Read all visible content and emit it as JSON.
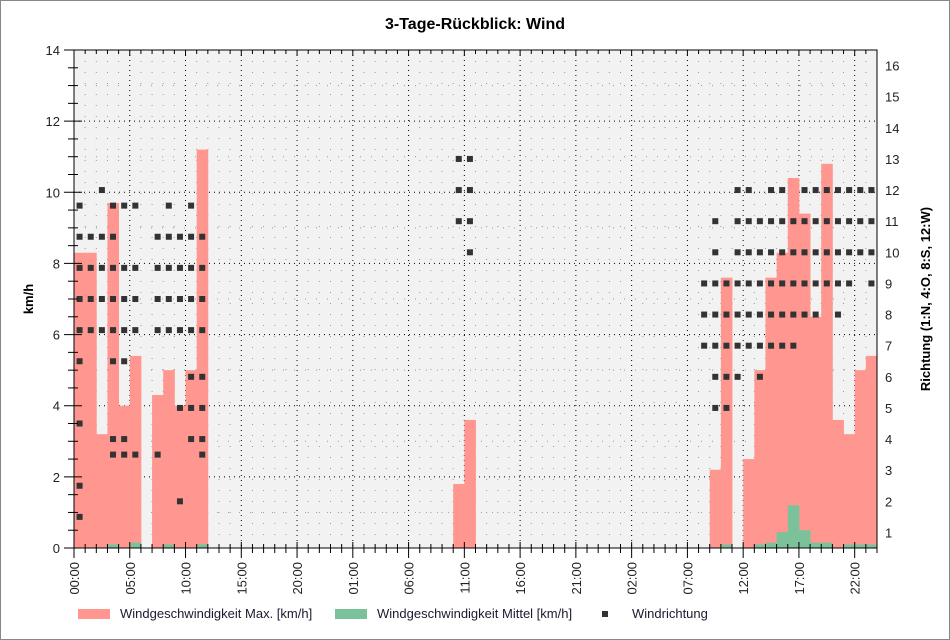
{
  "window": {
    "title": "3-Tage-Rückblick: Wind"
  },
  "chart_data": {
    "type": "bar",
    "title": "3-Tage-Rückblick: Wind",
    "xlabel": "",
    "ylabel": "km/h",
    "ylabel_right": "Richtung (1:N, 4:O, 8:S, 12:W)",
    "ylim": [
      0,
      14
    ],
    "ylim_right": [
      0.5,
      16.5
    ],
    "yticks": [
      0,
      2,
      4,
      6,
      8,
      10,
      12,
      14
    ],
    "yticks_right": [
      1,
      2,
      3,
      4,
      5,
      6,
      7,
      8,
      9,
      10,
      11,
      12,
      13,
      14,
      15,
      16
    ],
    "x_tick_labels": [
      "00:00",
      "05:00",
      "10:00",
      "15:00",
      "20:00",
      "01:00",
      "06:00",
      "11:00",
      "16:00",
      "21:00",
      "02:00",
      "07:00",
      "12:00",
      "17:00",
      "22:00"
    ],
    "grid": true,
    "legend_position": "bottom",
    "colors": {
      "max": "#ff9690",
      "mean": "#7bc29a",
      "direction": "#333333",
      "plot_bg": "#f2f2f2"
    },
    "hours": 72,
    "series": [
      {
        "name": "Windgeschwindigkeit Max. [km/h]",
        "type": "bar",
        "values": [
          8.3,
          8.3,
          3.2,
          9.7,
          4.0,
          5.4,
          0,
          4.3,
          5.0,
          4.0,
          5.0,
          11.2,
          0,
          0,
          0,
          0,
          0,
          0,
          0,
          0,
          0,
          0,
          0,
          0,
          0,
          0,
          0,
          0,
          0,
          0,
          0,
          0,
          0,
          0,
          1.8,
          3.6,
          0,
          0,
          0,
          0,
          0,
          0,
          0,
          0,
          0,
          0,
          0,
          0,
          0,
          0,
          0,
          0,
          0,
          0,
          0,
          0,
          0,
          2.2,
          7.6,
          0,
          2.5,
          5.0,
          7.6,
          8.3,
          10.4,
          9.4,
          6.5,
          10.8,
          3.6,
          3.2,
          5.0,
          5.4
        ]
      },
      {
        "name": "Windgeschwindigkeit Mittel [km/h]",
        "type": "bar",
        "values": [
          0,
          0,
          0,
          0.1,
          0,
          0.15,
          0,
          0,
          0.1,
          0,
          0,
          0.1,
          0,
          0,
          0,
          0,
          0,
          0,
          0,
          0,
          0,
          0,
          0,
          0,
          0,
          0,
          0,
          0,
          0,
          0,
          0,
          0,
          0,
          0,
          0,
          0,
          0,
          0,
          0,
          0,
          0,
          0,
          0,
          0,
          0,
          0,
          0,
          0,
          0,
          0,
          0,
          0,
          0,
          0,
          0,
          0,
          0,
          0,
          0.1,
          0,
          0,
          0.1,
          0.15,
          0.45,
          1.2,
          0.5,
          0.15,
          0.15,
          0,
          0.1,
          0.1,
          0.1
        ]
      },
      {
        "name": "Windrichtung",
        "type": "scatter",
        "axis": "right",
        "points": [
          [
            0,
            1.5
          ],
          [
            0,
            2.5
          ],
          [
            0,
            4.5
          ],
          [
            0,
            6.5
          ],
          [
            0,
            7.5
          ],
          [
            0,
            8.5
          ],
          [
            0,
            9.5
          ],
          [
            0,
            10.5
          ],
          [
            0,
            11.5
          ],
          [
            1,
            7.5
          ],
          [
            1,
            8.5
          ],
          [
            1,
            9.5
          ],
          [
            1,
            10.5
          ],
          [
            2,
            7.5
          ],
          [
            2,
            8.5
          ],
          [
            2,
            9.5
          ],
          [
            2,
            10.5
          ],
          [
            2,
            12
          ],
          [
            3,
            3.5
          ],
          [
            3,
            4
          ],
          [
            3,
            6.5
          ],
          [
            3,
            7.5
          ],
          [
            3,
            8.5
          ],
          [
            3,
            9.5
          ],
          [
            3,
            10.5
          ],
          [
            3,
            11.5
          ],
          [
            4,
            3.5
          ],
          [
            4,
            4
          ],
          [
            4,
            6.5
          ],
          [
            4,
            7.5
          ],
          [
            4,
            8.5
          ],
          [
            4,
            9.5
          ],
          [
            4,
            11.5
          ],
          [
            5,
            3.5
          ],
          [
            5,
            7.5
          ],
          [
            5,
            8.5
          ],
          [
            5,
            9.5
          ],
          [
            5,
            11.5
          ],
          [
            7,
            3.5
          ],
          [
            7,
            7.5
          ],
          [
            7,
            8.5
          ],
          [
            7,
            9.5
          ],
          [
            7,
            10.5
          ],
          [
            8,
            7.5
          ],
          [
            8,
            8.5
          ],
          [
            8,
            9.5
          ],
          [
            8,
            10.5
          ],
          [
            8,
            11.5
          ],
          [
            9,
            2
          ],
          [
            9,
            5
          ],
          [
            9,
            7.5
          ],
          [
            9,
            8.5
          ],
          [
            9,
            9.5
          ],
          [
            9,
            10.5
          ],
          [
            10,
            4
          ],
          [
            10,
            5
          ],
          [
            10,
            6
          ],
          [
            10,
            7.5
          ],
          [
            10,
            8.5
          ],
          [
            10,
            9.5
          ],
          [
            10,
            10.5
          ],
          [
            10,
            11.5
          ],
          [
            11,
            3.5
          ],
          [
            11,
            4
          ],
          [
            11,
            5
          ],
          [
            11,
            6
          ],
          [
            11,
            7.5
          ],
          [
            11,
            8.5
          ],
          [
            11,
            9.5
          ],
          [
            11,
            10.5
          ],
          [
            34,
            11
          ],
          [
            34,
            12
          ],
          [
            34,
            13
          ],
          [
            35,
            10
          ],
          [
            35,
            11
          ],
          [
            35,
            12
          ],
          [
            35,
            13
          ],
          [
            56,
            9
          ],
          [
            56,
            8
          ],
          [
            56,
            7
          ],
          [
            57,
            5
          ],
          [
            57,
            6
          ],
          [
            57,
            7
          ],
          [
            57,
            8
          ],
          [
            57,
            9
          ],
          [
            57,
            10
          ],
          [
            57,
            11
          ],
          [
            58,
            5
          ],
          [
            58,
            6
          ],
          [
            58,
            7
          ],
          [
            58,
            8
          ],
          [
            58,
            9
          ],
          [
            59,
            6
          ],
          [
            59,
            7
          ],
          [
            59,
            8
          ],
          [
            59,
            9
          ],
          [
            59,
            10
          ],
          [
            59,
            11
          ],
          [
            59,
            12
          ],
          [
            60,
            7
          ],
          [
            60,
            8
          ],
          [
            60,
            9
          ],
          [
            60,
            10
          ],
          [
            60,
            11
          ],
          [
            60,
            12
          ],
          [
            61,
            6
          ],
          [
            61,
            7
          ],
          [
            61,
            8
          ],
          [
            61,
            9
          ],
          [
            61,
            10
          ],
          [
            61,
            11
          ],
          [
            62,
            7
          ],
          [
            62,
            8
          ],
          [
            62,
            9
          ],
          [
            62,
            10
          ],
          [
            62,
            11
          ],
          [
            62,
            12
          ],
          [
            63,
            7
          ],
          [
            63,
            8
          ],
          [
            63,
            9
          ],
          [
            63,
            10
          ],
          [
            63,
            11
          ],
          [
            63,
            12
          ],
          [
            64,
            7
          ],
          [
            64,
            8
          ],
          [
            64,
            9
          ],
          [
            64,
            10
          ],
          [
            64,
            11
          ],
          [
            65,
            8
          ],
          [
            65,
            9
          ],
          [
            65,
            10
          ],
          [
            65,
            11
          ],
          [
            65,
            12
          ],
          [
            66,
            8
          ],
          [
            66,
            9
          ],
          [
            66,
            10
          ],
          [
            66,
            11
          ],
          [
            66,
            12
          ],
          [
            67,
            9
          ],
          [
            67,
            10
          ],
          [
            67,
            11
          ],
          [
            67,
            12
          ],
          [
            68,
            8
          ],
          [
            68,
            9
          ],
          [
            68,
            10
          ],
          [
            68,
            11
          ],
          [
            68,
            12
          ],
          [
            69,
            9
          ],
          [
            69,
            10
          ],
          [
            69,
            11
          ],
          [
            69,
            12
          ],
          [
            70,
            10
          ],
          [
            70,
            11
          ],
          [
            70,
            12
          ],
          [
            71,
            9
          ],
          [
            71,
            10
          ],
          [
            71,
            11
          ],
          [
            71,
            12
          ]
        ]
      }
    ]
  },
  "legend": {
    "max_label": "Windgeschwindigkeit Max. [km/h]",
    "mean_label": "Windgeschwindigkeit Mittel [km/h]",
    "direction_label": "Windrichtung"
  }
}
